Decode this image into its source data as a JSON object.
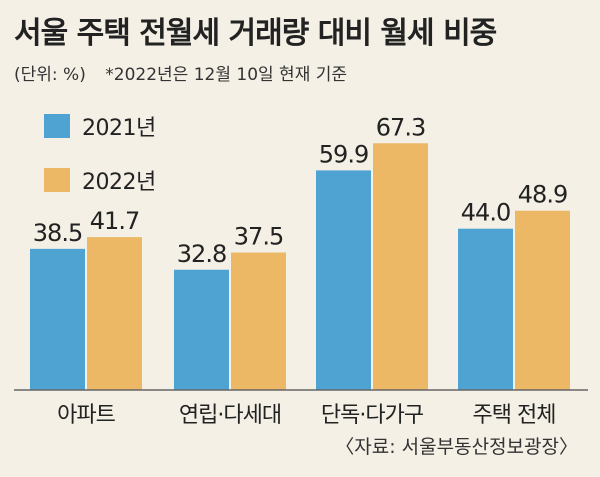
{
  "title": "서울 주택 전월세 거래량 대비 월세 비중",
  "unit_note": "(단위: %)",
  "date_note": "*2022년은 12월 10일 현재 기준",
  "source": "〈자료: 서울부동산정보광장〉",
  "colors": {
    "series_2021": "#4ea3d3",
    "series_2022": "#ecb866",
    "background": "#f4f0e6",
    "baseline": "#666666"
  },
  "chart_data": {
    "type": "bar",
    "title": "서울 주택 전월세 거래량 대비 월세 비중",
    "categories": [
      "아파트",
      "연립·다세대",
      "단독·다가구",
      "주택 전체"
    ],
    "series": [
      {
        "name": "2021년",
        "values": [
          38.5,
          32.8,
          59.9,
          44.0
        ]
      },
      {
        "name": "2022년",
        "values": [
          41.7,
          37.5,
          67.3,
          48.9
        ]
      }
    ],
    "value_labels": [
      [
        "38.5",
        "32.8",
        "59.9",
        "44.0"
      ],
      [
        "41.7",
        "37.5",
        "67.3",
        "48.9"
      ]
    ],
    "xlabel": "",
    "ylabel": "",
    "ylim": [
      0,
      80
    ],
    "grid": false,
    "legend_position": "top-left"
  }
}
